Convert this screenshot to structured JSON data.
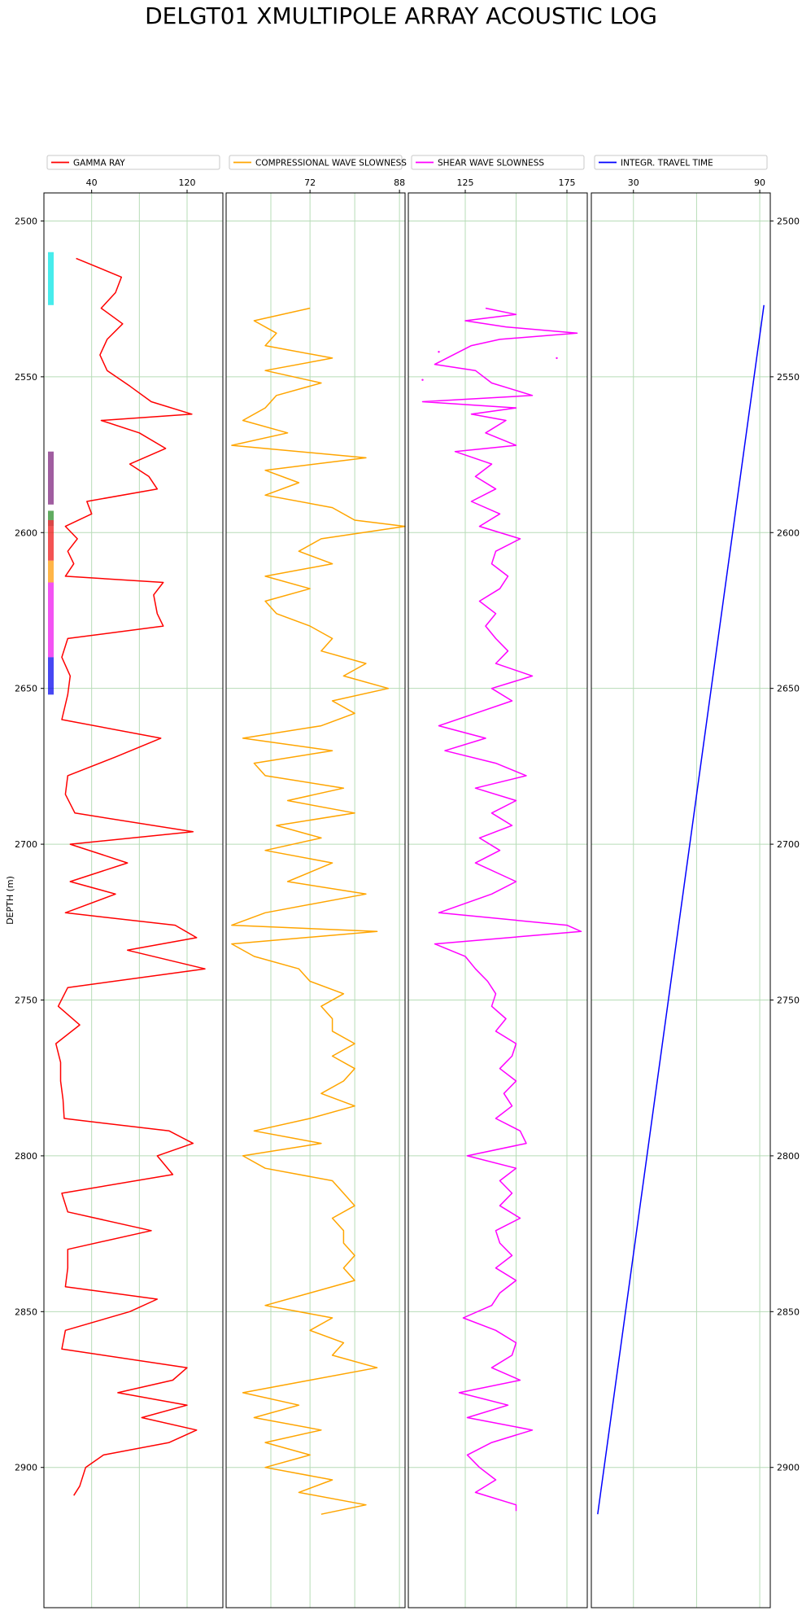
{
  "chart_data": {
    "type": "line",
    "title": "DELGT01 XMULTIPOLE ARRAY ACOUSTIC LOG",
    "ylabel": "DEPTH (m)",
    "depth_range": [
      2909,
      2500
    ],
    "depth_axis_limits": [
      2945,
      2491
    ],
    "depth_ticks": [
      2500,
      2550,
      2600,
      2650,
      2700,
      2750,
      2800,
      2850,
      2900
    ],
    "grid": true,
    "legend_placement": "top",
    "tracks": [
      {
        "id": "gr",
        "name": "GAMMA RAY",
        "color": "#ff0000",
        "xlim": [
          0,
          150
        ],
        "ticks": [
          40,
          120
        ],
        "grid": [
          0,
          40,
          80,
          120,
          150
        ],
        "depths": [
          2512,
          2518,
          2523,
          2528,
          2533,
          2538,
          2543,
          2548,
          2553,
          2558,
          2562,
          2564,
          2568,
          2573,
          2578,
          2582,
          2586,
          2590,
          2594,
          2598,
          2602,
          2606,
          2610,
          2614,
          2616,
          2620,
          2626,
          2630,
          2634,
          2640,
          2646,
          2652,
          2660,
          2666,
          2672,
          2678,
          2684,
          2690,
          2696,
          2700,
          2706,
          2712,
          2716,
          2722,
          2726,
          2730,
          2734,
          2740,
          2746,
          2752,
          2758,
          2764,
          2770,
          2776,
          2782,
          2788,
          2792,
          2796,
          2800,
          2806,
          2812,
          2818,
          2824,
          2830,
          2836,
          2842,
          2846,
          2850,
          2856,
          2862,
          2868,
          2872,
          2876,
          2880,
          2884,
          2888,
          2892,
          2896,
          2900,
          2906,
          2909
        ],
        "values": [
          27,
          65,
          60,
          48,
          66,
          53,
          47,
          53,
          72,
          90,
          124,
          48,
          80,
          102,
          72,
          88,
          95,
          36,
          40,
          18,
          28,
          20,
          25,
          18,
          100,
          92,
          95,
          100,
          20,
          15,
          22,
          20,
          15,
          98,
          60,
          20,
          18,
          26,
          125,
          22,
          70,
          22,
          60,
          18,
          110,
          128,
          70,
          135,
          20,
          12,
          30,
          10,
          14,
          14,
          16,
          17,
          105,
          125,
          95,
          108,
          15,
          20,
          90,
          20,
          20,
          18,
          95,
          72,
          18,
          15,
          120,
          108,
          62,
          120,
          82,
          128,
          105,
          50,
          35,
          30,
          25
        ],
        "marker_blocks": [
          {
            "top": 2510,
            "bottom": 2527,
            "color": "#00e5e5"
          },
          {
            "top": 2574,
            "bottom": 2591,
            "color": "#7b1e7b"
          },
          {
            "top": 2593,
            "bottom": 2596,
            "color": "#228b22"
          },
          {
            "top": 2596,
            "bottom": 2598,
            "color": "#cc0000"
          },
          {
            "top": 2598,
            "bottom": 2609,
            "color": "#ee1111"
          },
          {
            "top": 2609,
            "bottom": 2616,
            "color": "#ff9900"
          },
          {
            "top": 2616,
            "bottom": 2640,
            "color": "#ee11ee"
          },
          {
            "top": 2640,
            "bottom": 2652,
            "color": "#0000ee"
          }
        ]
      },
      {
        "id": "dtc",
        "name": "COMPRESSIONAL WAVE SLOWNESS",
        "color": "#ffa500",
        "xlim": [
          57,
          89
        ],
        "ticks": [
          72,
          88
        ],
        "grid": [
          57,
          65,
          72,
          80,
          88
        ],
        "depths": [
          2528,
          2532,
          2536,
          2540,
          2544,
          2548,
          2552,
          2556,
          2560,
          2564,
          2568,
          2572,
          2576,
          2580,
          2584,
          2588,
          2592,
          2596,
          2598,
          2602,
          2606,
          2610,
          2614,
          2618,
          2622,
          2626,
          2630,
          2634,
          2638,
          2642,
          2646,
          2650,
          2654,
          2658,
          2662,
          2666,
          2670,
          2674,
          2678,
          2682,
          2686,
          2690,
          2694,
          2698,
          2702,
          2706,
          2712,
          2716,
          2722,
          2726,
          2728,
          2732,
          2736,
          2740,
          2744,
          2748,
          2752,
          2756,
          2760,
          2764,
          2768,
          2772,
          2776,
          2780,
          2784,
          2788,
          2792,
          2796,
          2800,
          2804,
          2808,
          2812,
          2816,
          2820,
          2824,
          2828,
          2832,
          2836,
          2840,
          2844,
          2848,
          2852,
          2856,
          2860,
          2864,
          2868,
          2872,
          2876,
          2880,
          2884,
          2888,
          2892,
          2896,
          2900,
          2904,
          2908,
          2912,
          2915
        ],
        "values": [
          72,
          62,
          66,
          64,
          76,
          64,
          74,
          66,
          64,
          60,
          68,
          58,
          82,
          64,
          70,
          64,
          76,
          80,
          89,
          74,
          70,
          76,
          64,
          72,
          64,
          66,
          72,
          76,
          74,
          82,
          78,
          86,
          76,
          80,
          74,
          60,
          76,
          62,
          64,
          78,
          68,
          80,
          66,
          74,
          64,
          76,
          68,
          82,
          64,
          58,
          84,
          58,
          62,
          70,
          72,
          78,
          74,
          76,
          76,
          80,
          76,
          80,
          78,
          74,
          80,
          72,
          62,
          74,
          60,
          64,
          76,
          78,
          80,
          76,
          78,
          78,
          80,
          78,
          80,
          72,
          64,
          76,
          72,
          78,
          76,
          84,
          72,
          60,
          70,
          62,
          74,
          64,
          72,
          64,
          76,
          70,
          82,
          74
        ],
        "start_depth": 2528,
        "end_depth": 2915
      },
      {
        "id": "dts",
        "name": "SHEAR WAVE SLOWNESS",
        "color": "#ff00ff",
        "xlim": [
          97,
          185
        ],
        "ticks": [
          125,
          175
        ],
        "grid": [
          97,
          125,
          150,
          175
        ],
        "depths": [
          2528,
          2530,
          2532,
          2534,
          2536,
          2538,
          2540,
          2546,
          2548,
          2552,
          2556,
          2558,
          2560,
          2562,
          2564,
          2568,
          2572,
          2574,
          2578,
          2582,
          2586,
          2590,
          2594,
          2598,
          2602,
          2606,
          2610,
          2614,
          2618,
          2622,
          2626,
          2630,
          2634,
          2638,
          2642,
          2646,
          2650,
          2654,
          2658,
          2662,
          2666,
          2670,
          2674,
          2678,
          2682,
          2686,
          2690,
          2694,
          2698,
          2702,
          2706,
          2712,
          2716,
          2722,
          2726,
          2728,
          2732,
          2736,
          2740,
          2744,
          2748,
          2752,
          2756,
          2760,
          2764,
          2768,
          2772,
          2776,
          2780,
          2784,
          2788,
          2792,
          2796,
          2800,
          2804,
          2808,
          2812,
          2816,
          2820,
          2824,
          2828,
          2832,
          2836,
          2840,
          2844,
          2848,
          2852,
          2856,
          2860,
          2864,
          2868,
          2872,
          2876,
          2880,
          2884,
          2888,
          2892,
          2896,
          2900,
          2904,
          2908,
          2912,
          2914
        ],
        "values": [
          135,
          150,
          125,
          145,
          180,
          142,
          128,
          110,
          130,
          138,
          158,
          104,
          150,
          128,
          145,
          135,
          150,
          120,
          138,
          130,
          140,
          128,
          142,
          132,
          152,
          140,
          138,
          146,
          142,
          132,
          140,
          135,
          140,
          146,
          140,
          158,
          138,
          148,
          130,
          112,
          135,
          115,
          140,
          155,
          130,
          150,
          138,
          148,
          132,
          142,
          130,
          150,
          138,
          112,
          175,
          182,
          110,
          125,
          130,
          136,
          140,
          138,
          145,
          140,
          150,
          148,
          142,
          150,
          144,
          148,
          140,
          152,
          155,
          126,
          150,
          142,
          148,
          142,
          152,
          140,
          142,
          148,
          140,
          150,
          142,
          138,
          124,
          140,
          150,
          148,
          138,
          152,
          122,
          146,
          126,
          158,
          138,
          126,
          132,
          140,
          130,
          150,
          150
        ],
        "extra_points": [
          {
            "depth": 2551,
            "value": 104
          },
          {
            "depth": 2542,
            "value": 112
          },
          {
            "depth": 2544,
            "value": 170
          }
        ],
        "start_depth": 2528,
        "end_depth": 2914
      },
      {
        "id": "itt",
        "name": "INTEGR. TRAVEL TIME",
        "color": "#0000ff",
        "xlim": [
          10,
          95
        ],
        "ticks": [
          30,
          90
        ],
        "grid": [
          10,
          30,
          60,
          90
        ],
        "depths": [
          2527,
          2915
        ],
        "values": [
          92,
          13
        ]
      }
    ]
  }
}
